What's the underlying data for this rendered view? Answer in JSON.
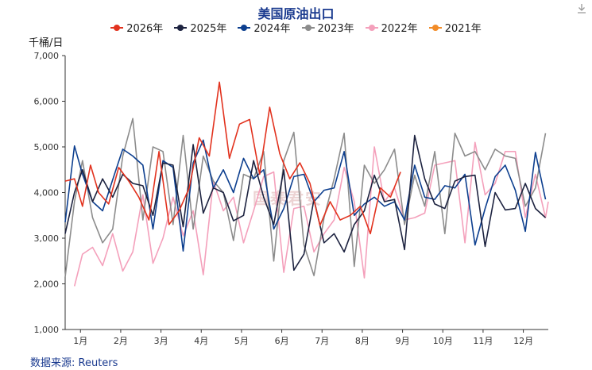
{
  "title": "美国原油出口",
  "y_unit": "千桶/日",
  "source": "数据来源: Reuters",
  "watermark": "国泰君安",
  "chart_data": {
    "type": "line",
    "ylim": [
      1000,
      7000
    ],
    "yticks": [
      1000,
      2000,
      3000,
      4000,
      5000,
      6000,
      7000
    ],
    "ytick_labels": [
      "1,000",
      "2,000",
      "3,000",
      "4,000",
      "5,000",
      "6,000",
      "7,000"
    ],
    "x_range": [
      0.62,
      12.62
    ],
    "x_ticks": [
      1,
      2,
      3,
      4,
      5,
      6,
      7,
      8,
      9,
      10,
      11,
      12
    ],
    "x_tick_labels": [
      "1月",
      "2月",
      "3月",
      "4月",
      "5月",
      "6月",
      "7月",
      "8月",
      "9月",
      "10月",
      "11月",
      "12月"
    ],
    "series": [
      {
        "name": "2026年",
        "color": "#e2321e",
        "x": [
          0.62,
          0.85,
          1.05,
          1.25,
          1.45,
          1.7,
          1.95,
          2.2,
          2.45,
          2.7,
          2.95,
          3.2,
          3.45,
          3.7,
          3.95,
          4.2,
          4.45,
          4.7,
          4.95,
          5.2,
          5.45,
          5.7,
          5.95,
          6.2,
          6.45,
          6.7,
          6.95,
          7.2,
          7.45,
          7.7,
          7.95,
          8.2,
          8.45,
          8.7,
          8.95
        ],
        "y": [
          4250,
          4300,
          3700,
          4600,
          4000,
          3750,
          4550,
          4250,
          3900,
          3400,
          4900,
          3300,
          3600,
          4100,
          5200,
          4800,
          6420,
          4750,
          5500,
          5600,
          4400,
          5870,
          4850,
          4300,
          4650,
          4200,
          3280,
          3800,
          3400,
          3500,
          3700,
          3100,
          4100,
          3900,
          4450
        ]
      },
      {
        "name": "2025年",
        "color": "#1d2340",
        "x": [
          0.62,
          0.85,
          1.05,
          1.3,
          1.55,
          1.8,
          2.05,
          2.3,
          2.55,
          2.8,
          3.05,
          3.3,
          3.55,
          3.8,
          4.05,
          4.3,
          4.55,
          4.8,
          5.05,
          5.3,
          5.55,
          5.8,
          6.05,
          6.3,
          6.55,
          6.8,
          7.05,
          7.3,
          7.55,
          7.8,
          8.05,
          8.3,
          8.55,
          8.8,
          9.05,
          9.3,
          9.55,
          9.8,
          10.05,
          10.3,
          10.55,
          10.8,
          11.05,
          11.3,
          11.55,
          11.8,
          12.05,
          12.3,
          12.55
        ],
        "y": [
          3100,
          4000,
          4500,
          3800,
          4300,
          3900,
          4400,
          4200,
          4150,
          3500,
          4650,
          4600,
          3250,
          5050,
          3550,
          4100,
          4000,
          3380,
          3500,
          4700,
          3900,
          3300,
          4500,
          2300,
          2650,
          3850,
          2900,
          3100,
          2700,
          3300,
          3600,
          4380,
          3800,
          3850,
          2750,
          5250,
          4300,
          3750,
          3650,
          4250,
          4350,
          4380,
          2820,
          4000,
          3620,
          3650,
          4200,
          3650,
          3450
        ]
      },
      {
        "name": "2024年",
        "color": "#0d3f8f",
        "x": [
          0.62,
          0.85,
          1.05,
          1.3,
          1.55,
          1.8,
          2.05,
          2.3,
          2.55,
          2.8,
          3.05,
          3.3,
          3.55,
          3.8,
          4.05,
          4.3,
          4.55,
          4.8,
          5.05,
          5.3,
          5.55,
          5.8,
          6.05,
          6.3,
          6.55,
          6.8,
          7.05,
          7.3,
          7.55,
          7.8,
          8.05,
          8.3,
          8.55,
          8.8,
          9.05,
          9.3,
          9.55,
          9.8,
          10.05,
          10.3,
          10.55,
          10.8,
          11.05,
          11.3,
          11.55,
          11.8,
          12.05,
          12.3,
          12.55
        ],
        "y": [
          3350,
          5020,
          4400,
          3800,
          3600,
          4280,
          4950,
          4800,
          4600,
          3200,
          4700,
          4550,
          2720,
          4650,
          5150,
          4100,
          4500,
          4000,
          4750,
          4300,
          4500,
          3200,
          3650,
          4350,
          4400,
          3800,
          4050,
          4100,
          4900,
          3500,
          3750,
          3900,
          3700,
          3800,
          3400,
          4600,
          3900,
          3850,
          4150,
          4100,
          4400,
          2850,
          3650,
          4350,
          4600,
          4050,
          3150,
          4880,
          3850
        ]
      },
      {
        "name": "2023年",
        "color": "#8c8c8c",
        "x": [
          0.62,
          0.85,
          1.05,
          1.3,
          1.55,
          1.8,
          2.05,
          2.3,
          2.55,
          2.8,
          3.05,
          3.3,
          3.55,
          3.8,
          4.05,
          4.3,
          4.55,
          4.8,
          5.05,
          5.3,
          5.55,
          5.8,
          6.05,
          6.3,
          6.55,
          6.8,
          7.05,
          7.3,
          7.55,
          7.8,
          8.05,
          8.3,
          8.55,
          8.8,
          9.05,
          9.3,
          9.55,
          9.8,
          10.05,
          10.3,
          10.55,
          10.8,
          11.05,
          11.3,
          11.55,
          11.8,
          12.05,
          12.3,
          12.55
        ],
        "y": [
          2150,
          3800,
          4700,
          3450,
          2900,
          3200,
          4800,
          5620,
          3400,
          5000,
          4900,
          3300,
          5250,
          3200,
          4800,
          4250,
          4000,
          2950,
          4400,
          4300,
          4900,
          2500,
          4700,
          5320,
          2850,
          2180,
          3450,
          4300,
          5300,
          2380,
          4600,
          4200,
          4500,
          4950,
          3300,
          4380,
          3700,
          4900,
          3100,
          5300,
          4800,
          4900,
          4500,
          4950,
          4800,
          4750,
          3700,
          4100,
          5300
        ]
      },
      {
        "name": "2022年",
        "color": "#f4a0bb",
        "x": [
          0.62,
          0.85,
          1.05,
          1.3,
          1.55,
          1.8,
          2.05,
          2.3,
          2.55,
          2.8,
          3.05,
          3.3,
          3.55,
          3.8,
          4.05,
          4.3,
          4.55,
          4.8,
          5.05,
          5.3,
          5.55,
          5.8,
          6.05,
          6.3,
          6.55,
          6.8,
          7.05,
          7.3,
          7.55,
          7.8,
          8.05,
          8.3,
          8.55,
          8.8,
          9.05,
          9.3,
          9.55,
          9.8,
          10.05,
          10.3,
          10.55,
          10.8,
          11.05,
          11.3,
          11.55,
          11.8,
          12.05,
          12.3,
          12.55,
          12.62
        ],
        "y": [
          null,
          1950,
          2650,
          2800,
          2400,
          3100,
          2280,
          2700,
          3950,
          2450,
          3000,
          3900,
          3050,
          3600,
          2200,
          4250,
          3600,
          3900,
          2900,
          3600,
          4350,
          4450,
          2250,
          3650,
          3700,
          2700,
          3100,
          3400,
          4550,
          3800,
          2130,
          5000,
          3800,
          4100,
          3400,
          3450,
          3550,
          4600,
          4650,
          4700,
          2900,
          5100,
          3950,
          4200,
          4900,
          4900,
          3450,
          4400,
          3450,
          3800
        ]
      },
      {
        "name": "2021年",
        "color": "#f28c28",
        "x": [],
        "y": []
      }
    ]
  }
}
